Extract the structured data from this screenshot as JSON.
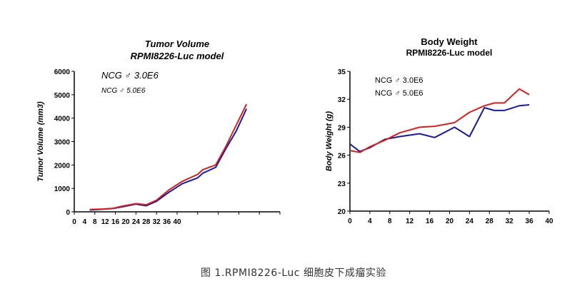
{
  "caption": "图 1.RPMI8226-Luc 细胞皮下成瘤实验",
  "colors": {
    "series_blue": "#1a1aa0",
    "series_red": "#d42020",
    "axis": "#000000"
  },
  "chart_data": [
    {
      "type": "line",
      "title": "Tumor Volume",
      "subtitle": "RPMI8226-Luc model",
      "xlabel": "",
      "ylabel": "Tumor Volume (mm3)",
      "xlim": [
        0,
        40
      ],
      "ylim": [
        0,
        6000
      ],
      "xticks": [
        "0",
        "4",
        "8",
        "12",
        "16",
        "20",
        "24",
        "28",
        "32",
        "36",
        "40"
      ],
      "yticks": [
        0,
        1000,
        2000,
        3000,
        4000,
        5000,
        6000
      ],
      "ytick_labels": [
        "0",
        "1000",
        "2000",
        "3000",
        "4000",
        "5000",
        "6000"
      ],
      "grid": false,
      "legend": [
        "NCG ♂ 3.0E6",
        "NCG ♂ 5.0E6"
      ],
      "series": [
        {
          "name": "NCG ♂ 3.0E6",
          "color": "#1a1aa0",
          "x": [
            3,
            5.5,
            7.5,
            9.5,
            12,
            14,
            16,
            18.5,
            21,
            24,
            25,
            27.5,
            29.5,
            31.5,
            33.5
          ],
          "y": [
            80,
            110,
            140,
            220,
            330,
            260,
            450,
            850,
            1200,
            1450,
            1650,
            1900,
            2700,
            3450,
            4400
          ]
        },
        {
          "name": "NCG ♂ 5.0E6",
          "color": "#d42020",
          "x": [
            3,
            5.5,
            7.5,
            9.5,
            12,
            14,
            16,
            18.5,
            21,
            24,
            25,
            27.5,
            29.5,
            31.5,
            33.5
          ],
          "y": [
            100,
            120,
            150,
            250,
            350,
            300,
            500,
            950,
            1300,
            1600,
            1800,
            2000,
            2800,
            3700,
            4600
          ]
        }
      ]
    },
    {
      "type": "line",
      "title": "Body Weight",
      "subtitle": "RPMI8226-Luc model",
      "xlabel": "",
      "ylabel": "Body Weight (g)",
      "xlim": [
        0,
        40
      ],
      "ylim": [
        20,
        35
      ],
      "xticks": [
        "0",
        "4",
        "8",
        "12",
        "16",
        "20",
        "24",
        "28",
        "32",
        "36",
        "40"
      ],
      "yticks": [
        20,
        23,
        26,
        29,
        32,
        35
      ],
      "ytick_labels": [
        "20",
        "23",
        "26",
        "29",
        "32",
        "35"
      ],
      "grid": false,
      "legend": [
        "NCG ♂ 3.0E6",
        "NCG ♂ 5.0E6"
      ],
      "series": [
        {
          "name": "NCG ♂ 3.0E6",
          "color": "#1a1aa0",
          "x": [
            0,
            2,
            4,
            7,
            10,
            14,
            17,
            21,
            24,
            27,
            29,
            31,
            34,
            36
          ],
          "y": [
            27.2,
            26.4,
            26.8,
            27.7,
            28.0,
            28.3,
            27.9,
            29.0,
            28.0,
            31.1,
            30.8,
            30.8,
            31.3,
            31.4
          ]
        },
        {
          "name": "NCG ♂ 5.0E6",
          "color": "#d42020",
          "x": [
            0,
            2,
            4,
            7,
            10,
            14,
            17,
            21,
            24,
            27,
            29,
            31,
            34,
            36
          ],
          "y": [
            26.5,
            26.3,
            26.9,
            27.6,
            28.4,
            29.0,
            29.1,
            29.5,
            30.6,
            31.3,
            31.6,
            31.6,
            33.1,
            32.5
          ]
        }
      ]
    }
  ]
}
